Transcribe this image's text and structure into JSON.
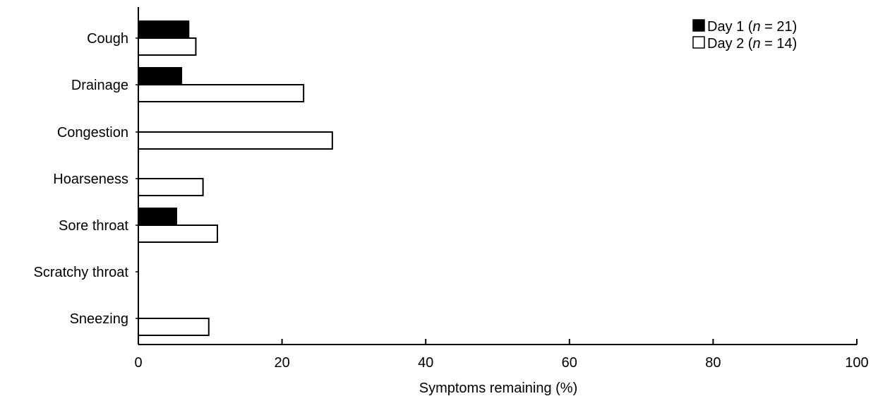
{
  "chart_data": {
    "type": "bar",
    "orientation": "horizontal",
    "categories": [
      "Cough",
      "Drainage",
      "Congestion",
      "Hoarseness",
      "Sore throat",
      "Scratchy throat",
      "Sneezing"
    ],
    "series": [
      {
        "name": "Day 1",
        "n_label": "21",
        "fill": "#000000",
        "values": [
          7,
          6,
          0,
          0,
          5.3,
          0,
          0
        ]
      },
      {
        "name": "Day 2",
        "n_label": "14",
        "fill": "#ffffff",
        "values": [
          8,
          23,
          27,
          9,
          11,
          0,
          9.8
        ]
      }
    ],
    "xlabel": "Symptoms remaining (%)",
    "ylabel": "",
    "xlim": [
      0,
      100
    ],
    "x_ticks": [
      0,
      20,
      40,
      60,
      80,
      100
    ],
    "grid": false,
    "legend_position": "top-right"
  }
}
